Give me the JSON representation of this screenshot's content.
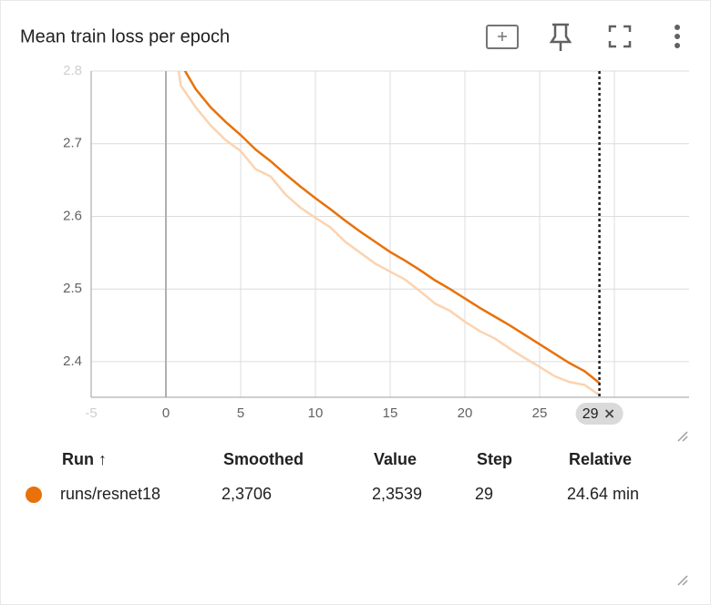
{
  "chart_data": {
    "type": "line",
    "title": "Mean train loss per epoch",
    "x": [
      0,
      1,
      2,
      3,
      4,
      5,
      6,
      7,
      8,
      9,
      10,
      11,
      12,
      13,
      14,
      15,
      16,
      17,
      18,
      19,
      20,
      21,
      22,
      23,
      24,
      25,
      26,
      27,
      28,
      29
    ],
    "series": [
      {
        "color": "#fbd3b0",
        "values": [
          2.92,
          2.78,
          2.75,
          2.725,
          2.705,
          2.69,
          2.665,
          2.655,
          2.63,
          2.612,
          2.598,
          2.585,
          2.565,
          2.55,
          2.535,
          2.524,
          2.513,
          2.497,
          2.48,
          2.47,
          2.455,
          2.442,
          2.432,
          2.418,
          2.405,
          2.393,
          2.38,
          2.372,
          2.368,
          2.3539
        ]
      },
      {
        "color": "#e8710a",
        "values": [
          2.92,
          2.81,
          2.775,
          2.75,
          2.73,
          2.712,
          2.692,
          2.676,
          2.658,
          2.641,
          2.625,
          2.61,
          2.594,
          2.579,
          2.565,
          2.551,
          2.539,
          2.526,
          2.512,
          2.5,
          2.487,
          2.474,
          2.462,
          2.45,
          2.437,
          2.424,
          2.411,
          2.398,
          2.387,
          2.3706
        ]
      }
    ],
    "xlim": [
      -5,
      35
    ],
    "xticks": [
      -5,
      0,
      5,
      10,
      15,
      20,
      25,
      30
    ],
    "ylim": [
      2.351,
      2.8
    ],
    "yticks": [
      2.4,
      2.5,
      2.6,
      2.7,
      2.8
    ],
    "grid": true,
    "cursor_step": 29
  },
  "table": {
    "headers": [
      "Run ↑",
      "Smoothed",
      "Value",
      "Step",
      "Relative"
    ],
    "rows": [
      [
        "runs/resnet18",
        "2,3706",
        "2,3539",
        "29",
        "24.64 min"
      ]
    ],
    "run_color": "#e8710a"
  }
}
